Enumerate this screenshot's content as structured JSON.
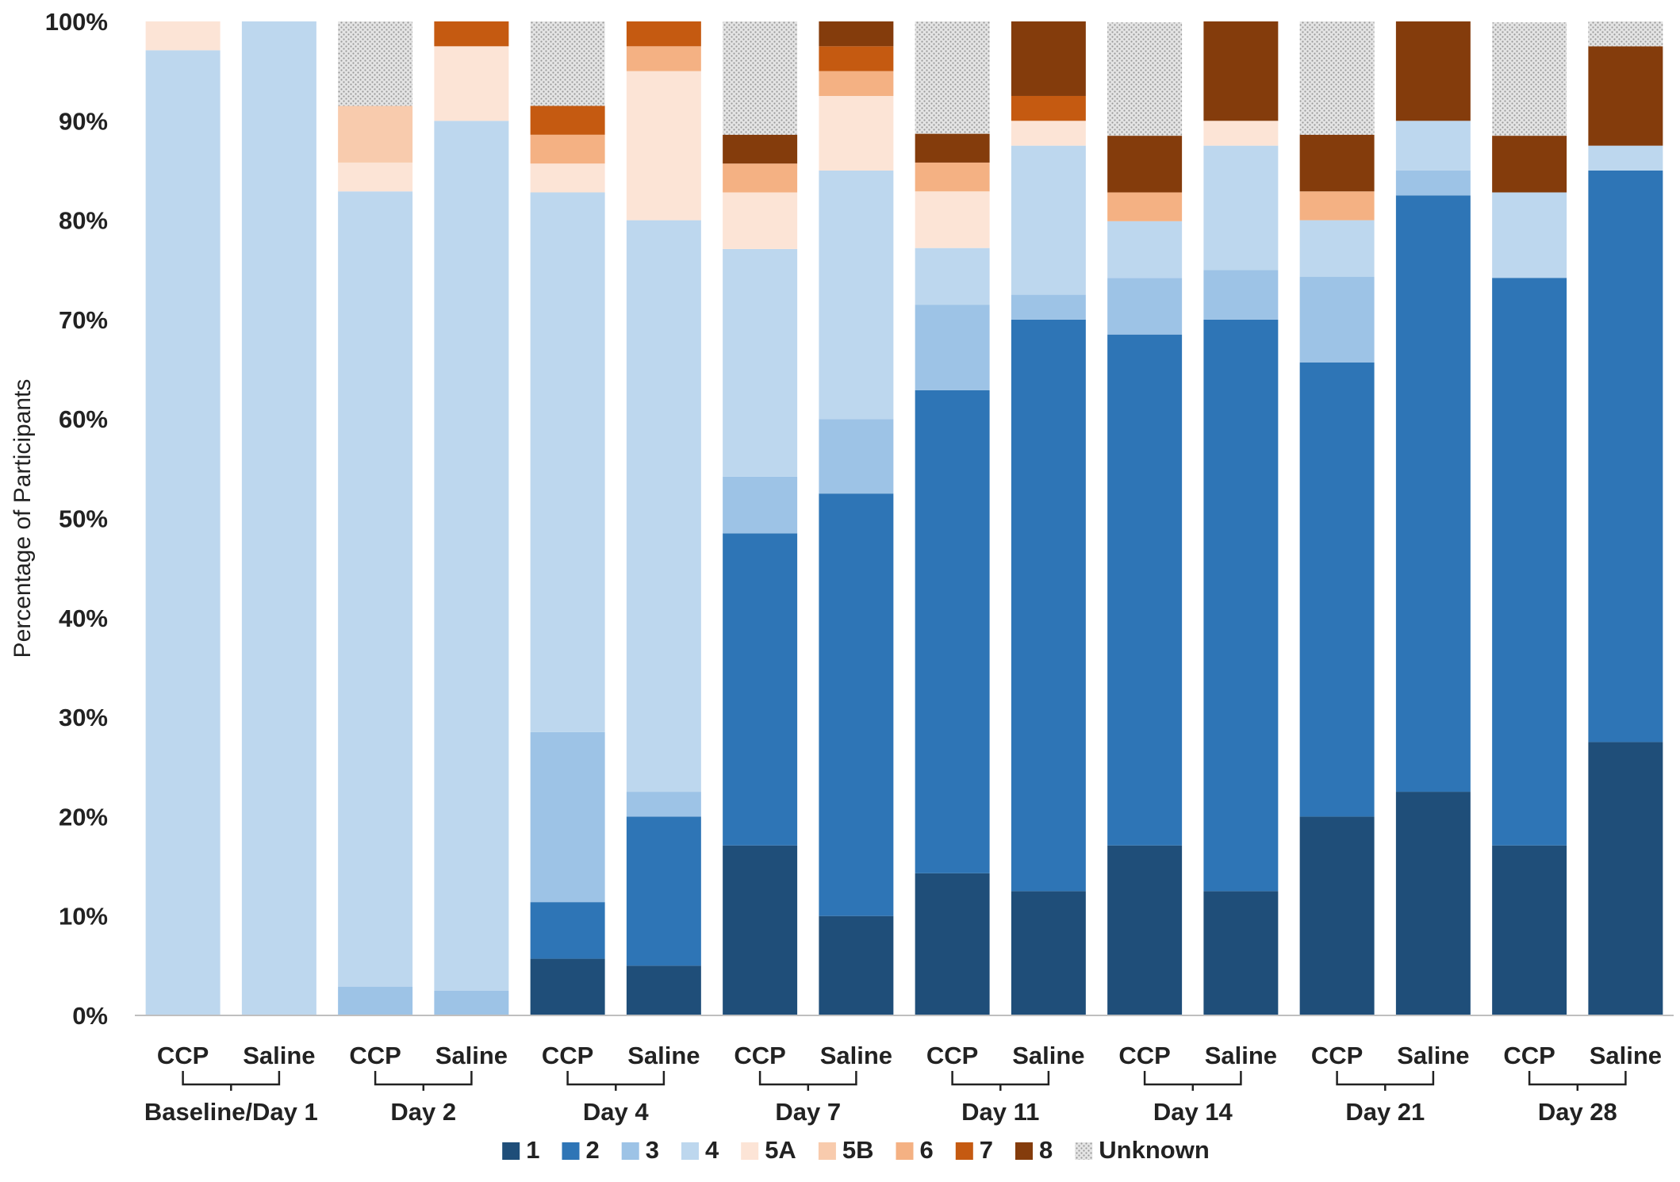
{
  "chart_data": {
    "type": "bar",
    "stacked": true,
    "title": "",
    "xlabel": "",
    "ylabel": "Percentage of Participants",
    "ylim": [
      0,
      100
    ],
    "yticks": [
      "0%",
      "10%",
      "20%",
      "30%",
      "40%",
      "50%",
      "60%",
      "70%",
      "80%",
      "90%",
      "100%"
    ],
    "grid": false,
    "legend_position": "bottom",
    "categories": [
      "CCP",
      "Saline",
      "CCP",
      "Saline",
      "CCP",
      "Saline",
      "CCP",
      "Saline",
      "CCP",
      "Saline",
      "CCP",
      "Saline",
      "CCP",
      "Saline",
      "CCP",
      "Saline"
    ],
    "groups": [
      "Baseline/Day 1",
      "Day 2",
      "Day 4",
      "Day 7",
      "Day 11",
      "Day 14",
      "Day 21",
      "Day 28"
    ],
    "series": [
      {
        "name": "1",
        "color": "#1f4e79",
        "values": [
          0,
          0,
          0,
          0,
          5.7,
          5.0,
          17.1,
          10.0,
          14.3,
          12.5,
          17.1,
          12.5,
          20.0,
          22.5,
          17.1,
          27.5
        ]
      },
      {
        "name": "2",
        "color": "#2e75b6",
        "values": [
          0,
          0,
          0,
          0,
          5.7,
          15.0,
          31.4,
          42.5,
          48.6,
          57.5,
          51.4,
          57.5,
          45.7,
          60.0,
          57.1,
          57.5
        ]
      },
      {
        "name": "3",
        "color": "#9dc3e6",
        "values": [
          0,
          0,
          2.9,
          2.5,
          17.1,
          2.5,
          5.7,
          7.5,
          8.6,
          2.5,
          5.7,
          5.0,
          8.6,
          2.5,
          0,
          0
        ]
      },
      {
        "name": "4",
        "color": "#bdd7ee",
        "values": [
          97.1,
          100,
          80.0,
          87.5,
          54.3,
          57.5,
          22.9,
          25.0,
          5.7,
          15.0,
          5.7,
          12.5,
          5.7,
          5.0,
          8.6,
          2.5
        ]
      },
      {
        "name": "5A",
        "color": "#fce4d6",
        "values": [
          2.9,
          0,
          2.9,
          7.5,
          2.9,
          15.0,
          5.7,
          7.5,
          5.7,
          2.5,
          0,
          2.5,
          0,
          0,
          0,
          0
        ]
      },
      {
        "name": "5B",
        "color": "#f8cbad",
        "values": [
          0,
          0,
          5.7,
          0,
          0,
          0,
          0,
          0,
          0,
          0,
          0,
          0,
          0,
          0,
          0,
          0
        ]
      },
      {
        "name": "6",
        "color": "#f4b183",
        "values": [
          0,
          0,
          0,
          0,
          2.9,
          2.5,
          2.9,
          2.5,
          2.9,
          0,
          2.9,
          0,
          2.9,
          0,
          0,
          0
        ]
      },
      {
        "name": "7",
        "color": "#c55a11",
        "values": [
          0,
          0,
          0,
          2.5,
          2.9,
          2.5,
          0,
          2.5,
          0,
          2.5,
          0,
          0,
          0,
          0,
          0,
          0
        ]
      },
      {
        "name": "8",
        "color": "#843c0c",
        "values": [
          0,
          0,
          0,
          0,
          0,
          0,
          2.9,
          2.5,
          2.9,
          7.5,
          5.7,
          10.0,
          5.7,
          10.0,
          5.7,
          10.0
        ]
      },
      {
        "name": "Unknown",
        "color": "#d0d0d0",
        "pattern": "dots",
        "values": [
          0,
          0,
          8.6,
          0,
          8.6,
          0,
          11.4,
          0,
          11.4,
          0,
          11.4,
          0,
          11.4,
          0,
          11.4,
          2.5
        ]
      }
    ]
  }
}
